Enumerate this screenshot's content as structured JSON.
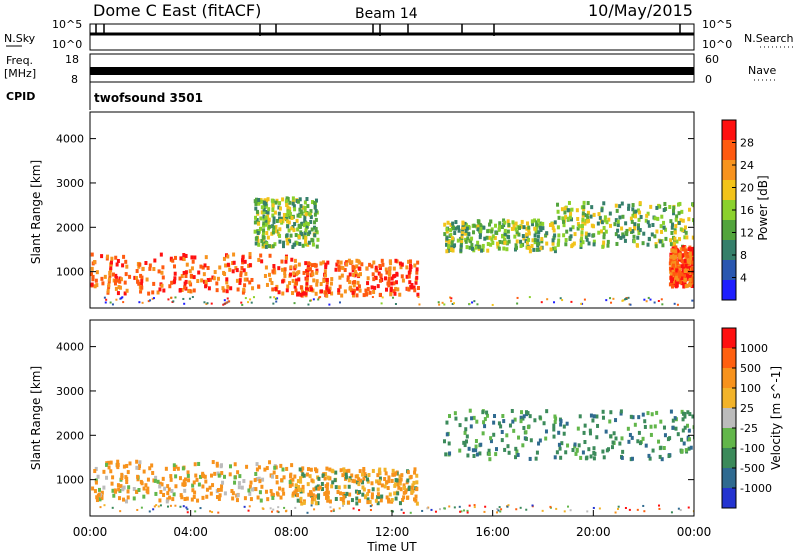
{
  "header": {
    "station": "Dome C East (fitACF)",
    "beam": "Beam 14",
    "date": "10/May/2015"
  },
  "strips": {
    "nsky": {
      "label": "N.Sky",
      "ticks": [
        "10^5",
        "10^0"
      ]
    },
    "nsearch": {
      "label": "N.Search",
      "ticks": [
        "10^5",
        "10^0"
      ]
    },
    "freq": {
      "label_top": "Freq.",
      "label_unit": "[MHz]",
      "ticks": [
        "18",
        "8"
      ],
      "level": 11
    },
    "nave": {
      "label": "Nave",
      "ticks": [
        "60",
        "0"
      ],
      "level": 30
    },
    "cpid": {
      "label": "CPID",
      "value": "twofsound 3501"
    }
  },
  "chart_data": [
    {
      "type": "heatmap",
      "name": "power",
      "xlabel": "",
      "ylabel": "Slant Range [km]",
      "xlim": [
        0,
        24
      ],
      "ylim": [
        180,
        4600
      ],
      "yticks": [
        1000,
        2000,
        3000,
        4000
      ],
      "colorbar": {
        "label": "Power [dB]",
        "ticks": [
          4,
          8,
          12,
          16,
          20,
          24,
          28
        ],
        "range": [
          0,
          32
        ]
      },
      "regions": [
        {
          "t": [
            0,
            8
          ],
          "r": [
            550,
            1450
          ],
          "level": "high"
        },
        {
          "t": [
            8,
            13
          ],
          "r": [
            500,
            1300
          ],
          "level": "high"
        },
        {
          "t": [
            6.5,
            9
          ],
          "r": [
            1600,
            2700
          ],
          "level": "medium"
        },
        {
          "t": [
            14,
            18.5
          ],
          "r": [
            1500,
            2200
          ],
          "level": "medium"
        },
        {
          "t": [
            18.5,
            24
          ],
          "r": [
            1600,
            2600
          ],
          "level": "medium"
        },
        {
          "t": [
            23,
            24
          ],
          "r": [
            700,
            1600
          ],
          "level": "high"
        }
      ]
    },
    {
      "type": "heatmap",
      "name": "velocity",
      "xlabel": "Time UT",
      "ylabel": "Slant Range [km]",
      "xlim": [
        0,
        24
      ],
      "ylim": [
        180,
        4600
      ],
      "xticks": [
        "00:00",
        "04:00",
        "08:00",
        "12:00",
        "16:00",
        "20:00",
        "00:00"
      ],
      "yticks": [
        1000,
        2000,
        3000,
        4000
      ],
      "colorbar": {
        "label": "Velocity [m s^-1]",
        "ticks": [
          "1000",
          "500",
          "100",
          "25",
          "-25",
          "-100",
          "-500",
          "-1000"
        ]
      },
      "regions": [
        {
          "t": [
            0,
            8
          ],
          "r": [
            550,
            1450
          ],
          "level": "receding"
        },
        {
          "t": [
            8,
            13
          ],
          "r": [
            500,
            1300
          ],
          "level": "mixed"
        },
        {
          "t": [
            14,
            24
          ],
          "r": [
            1500,
            2600
          ],
          "level": "approaching"
        }
      ]
    }
  ],
  "colors": {
    "power": [
      "#1f1fff",
      "#2a57b0",
      "#357f6a",
      "#52a43c",
      "#8bd12c",
      "#f2c31a",
      "#f7931e",
      "#ff5a10",
      "#ff1010"
    ],
    "velocity": [
      "#2434d0",
      "#2f6a90",
      "#3b8a5a",
      "#62b64a",
      "#bcbcbc",
      "#f2b32a",
      "#f7921c",
      "#ff6010",
      "#ff1010"
    ]
  }
}
